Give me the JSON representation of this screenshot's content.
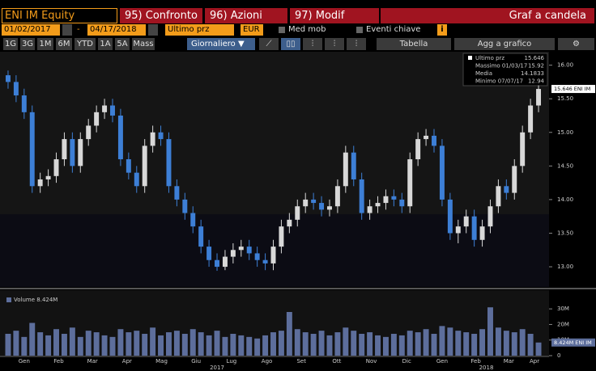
{
  "toolbar": {
    "ticker": "ENI IM Equity",
    "buttons": [
      "95) Confronto",
      "96) Azioni",
      "97) Modif"
    ],
    "chart_kind": "Graf a candela",
    "start_date": "01/02/2017",
    "dash": "-",
    "end_date": "04/17/2018",
    "field": "Ultimo prz",
    "currency": "EUR",
    "moving_avg": "Med mob",
    "key_events": "Eventi chiave",
    "periods": [
      "1G",
      "3G",
      "1M",
      "6M",
      "YTD",
      "1A",
      "5A",
      "Mass"
    ],
    "frequency": "Giornaliero ▼",
    "table": "Tabella",
    "add_to_chart": "Agg a grafico"
  },
  "chart_data": {
    "type": "candlestick",
    "up_color": "#d8d8d8",
    "down_color": "#3d7fd6",
    "open": [
      15.85,
      15.75,
      15.55,
      15.3,
      14.2,
      14.3,
      14.35,
      14.6,
      14.9,
      14.5,
      14.9,
      15.1,
      15.3,
      15.4,
      15.25,
      14.6,
      14.4,
      14.2,
      14.8,
      15.0,
      14.9,
      14.2,
      14.0,
      13.8,
      13.6,
      13.3,
      13.1,
      13.0,
      13.15,
      13.25,
      13.3,
      13.2,
      13.1,
      13.05,
      13.3,
      13.6,
      13.7,
      13.9,
      14.0,
      13.95,
      13.85,
      13.9,
      14.2,
      14.7,
      14.3,
      13.8,
      13.9,
      13.95,
      14.05,
      14.0,
      13.9,
      14.6,
      14.9,
      14.95,
      14.8,
      14.0,
      13.5,
      13.6,
      13.75,
      13.4,
      13.6,
      13.9,
      14.2,
      14.1,
      14.5,
      15.0,
      15.4
    ],
    "high": [
      15.92,
      15.85,
      15.65,
      15.4,
      14.4,
      14.45,
      14.7,
      15.0,
      15.0,
      15.0,
      15.2,
      15.4,
      15.5,
      15.5,
      15.35,
      14.7,
      14.5,
      14.9,
      15.1,
      15.1,
      15.0,
      14.3,
      14.1,
      13.9,
      13.7,
      13.4,
      13.2,
      13.25,
      13.35,
      13.4,
      13.4,
      13.3,
      13.2,
      13.4,
      13.7,
      13.8,
      14.0,
      14.1,
      14.1,
      14.05,
      14.0,
      14.3,
      14.8,
      14.8,
      14.4,
      14.0,
      14.05,
      14.15,
      14.15,
      14.1,
      14.7,
      15.0,
      15.05,
      15.05,
      14.9,
      14.1,
      13.7,
      13.85,
      13.85,
      13.7,
      14.0,
      14.3,
      14.3,
      14.6,
      15.1,
      15.5,
      15.7
    ],
    "low": [
      15.65,
      15.45,
      15.2,
      14.1,
      14.1,
      14.2,
      14.25,
      14.5,
      14.4,
      14.4,
      14.8,
      15.0,
      15.2,
      15.15,
      14.5,
      14.3,
      14.1,
      14.1,
      14.7,
      14.8,
      14.1,
      13.9,
      13.7,
      13.5,
      13.2,
      13.0,
      12.94,
      12.95,
      13.05,
      13.15,
      13.1,
      13.0,
      12.95,
      12.95,
      13.2,
      13.5,
      13.6,
      13.8,
      13.85,
      13.75,
      13.75,
      13.8,
      14.1,
      14.2,
      13.7,
      13.7,
      13.8,
      13.85,
      13.9,
      13.8,
      13.8,
      14.5,
      14.8,
      14.7,
      13.9,
      13.4,
      13.35,
      13.5,
      13.3,
      13.3,
      13.5,
      13.8,
      14.0,
      14.0,
      14.4,
      14.9,
      15.3
    ],
    "close": [
      15.75,
      15.55,
      15.3,
      14.2,
      14.3,
      14.35,
      14.6,
      14.9,
      14.5,
      14.9,
      15.1,
      15.3,
      15.4,
      15.25,
      14.6,
      14.4,
      14.2,
      14.8,
      15.0,
      14.9,
      14.2,
      14.0,
      13.8,
      13.6,
      13.3,
      13.1,
      13.0,
      13.15,
      13.25,
      13.3,
      13.2,
      13.1,
      13.05,
      13.3,
      13.6,
      13.7,
      13.9,
      14.0,
      13.95,
      13.85,
      13.9,
      14.2,
      14.7,
      14.3,
      13.8,
      13.9,
      13.95,
      14.05,
      14.0,
      13.9,
      14.6,
      14.9,
      14.95,
      14.8,
      14.0,
      13.5,
      13.6,
      13.75,
      13.4,
      13.6,
      13.9,
      14.2,
      14.1,
      14.5,
      15.0,
      15.4,
      15.646
    ],
    "volume": [
      14,
      16,
      12,
      21,
      15,
      13,
      17,
      14,
      18,
      12,
      16,
      15,
      13,
      12,
      17,
      15,
      16,
      14,
      18,
      13,
      15,
      16,
      14,
      17,
      15,
      13,
      16,
      12,
      14,
      13,
      12,
      11,
      13,
      15,
      16,
      28,
      17,
      15,
      14,
      16,
      13,
      15,
      18,
      16,
      14,
      15,
      13,
      12,
      14,
      13,
      16,
      15,
      17,
      14,
      19,
      18,
      16,
      15,
      14,
      17,
      31,
      18,
      16,
      15,
      17,
      14,
      8.424
    ],
    "volume_color": "#5d6e9c",
    "ylim": [
      12.7,
      16.2
    ],
    "yticks": [
      {
        "value": 13,
        "label": "13.00"
      },
      {
        "value": 13.5,
        "label": "13.50"
      },
      {
        "value": 14,
        "label": "14.00"
      },
      {
        "value": 14.5,
        "label": "14.50"
      },
      {
        "value": 15,
        "label": "15.00"
      },
      {
        "value": 15.5,
        "label": "15.50"
      },
      {
        "value": 16,
        "label": "16.00"
      }
    ],
    "volume_ylim": [
      0,
      42
    ],
    "volume_yticks": [
      0,
      {
        "value": 10,
        "label": "10M"
      },
      {
        "value": 20,
        "label": "20M"
      },
      {
        "value": 30,
        "label": "30M"
      }
    ],
    "month_ticks": [
      {
        "value": 2,
        "label": "Gen"
      },
      {
        "value": 6.3,
        "label": "Feb"
      },
      {
        "value": 10.5,
        "label": "Mar"
      },
      {
        "value": 14.8,
        "label": "Apr"
      },
      {
        "value": 19.1,
        "label": "Mag"
      },
      {
        "value": 23.4,
        "label": "Giu"
      },
      {
        "value": 27.8,
        "label": "Lug"
      },
      {
        "value": 32.2,
        "label": "Ago"
      },
      {
        "value": 36.5,
        "label": "Set"
      },
      {
        "value": 40.9,
        "label": "Ott"
      },
      {
        "value": 45.2,
        "label": "Nov"
      },
      {
        "value": 49.6,
        "label": "Dic"
      },
      {
        "value": 54,
        "label": "Gen"
      },
      {
        "value": 58.2,
        "label": "Feb"
      },
      {
        "value": 62.3,
        "label": "Mar"
      },
      {
        "value": 65.5,
        "label": "Apr"
      }
    ],
    "year_ticks": [
      {
        "value": 26,
        "label": "2017"
      },
      {
        "value": 59.5,
        "label": "2018"
      }
    ],
    "legend": [
      {
        "name": "Ultimo prz",
        "value": 15.646
      },
      {
        "name": "Massimo 01/03/17",
        "value": 15.92
      },
      {
        "name": "Media",
        "value": 14.1833
      },
      {
        "name": "Minimo 07/07/17",
        "value": 12.94
      }
    ],
    "last_tag": "15.646 ENI IM",
    "volume_legend": "Volume 8.424M",
    "volume_tag": "8.424M ENI IM"
  }
}
